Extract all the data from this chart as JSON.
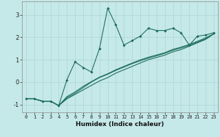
{
  "title": "",
  "xlabel": "Humidex (Indice chaleur)",
  "bg_color": "#c5e8e8",
  "line_color": "#1a6b5a",
  "grid_color": "#aad4d4",
  "xlim": [
    -0.5,
    23.5
  ],
  "ylim": [
    -1.35,
    3.6
  ],
  "xticks": [
    0,
    1,
    2,
    3,
    4,
    5,
    6,
    7,
    8,
    9,
    10,
    11,
    12,
    13,
    14,
    15,
    16,
    17,
    18,
    19,
    20,
    21,
    22,
    23
  ],
  "yticks": [
    -1,
    0,
    1,
    2,
    3
  ],
  "series1_x": [
    0,
    1,
    2,
    3,
    4,
    5,
    6,
    7,
    8,
    9,
    10,
    11,
    12,
    13,
    14,
    15,
    16,
    17,
    18,
    19,
    20,
    21,
    22,
    23
  ],
  "series1_y": [
    -0.75,
    -0.75,
    -0.85,
    -0.85,
    -1.05,
    0.1,
    0.9,
    0.65,
    0.45,
    1.5,
    3.3,
    2.55,
    1.65,
    1.85,
    2.05,
    2.4,
    2.3,
    2.3,
    2.4,
    2.2,
    1.65,
    2.05,
    2.1,
    2.2
  ],
  "series2_x": [
    0,
    1,
    2,
    3,
    4,
    5,
    6,
    7,
    8,
    9,
    10,
    11,
    12,
    13,
    14,
    15,
    16,
    17,
    18,
    19,
    20,
    21,
    22,
    23
  ],
  "series2_y": [
    -0.75,
    -0.75,
    -0.85,
    -0.85,
    -1.05,
    -0.75,
    -0.55,
    -0.35,
    -0.15,
    0.05,
    0.2,
    0.4,
    0.55,
    0.7,
    0.85,
    1.0,
    1.1,
    1.2,
    1.35,
    1.45,
    1.6,
    1.75,
    1.9,
    2.15
  ],
  "series3_x": [
    0,
    1,
    2,
    3,
    4,
    5,
    6,
    7,
    8,
    9,
    10,
    11,
    12,
    13,
    14,
    15,
    16,
    17,
    18,
    19,
    20,
    21,
    22,
    23
  ],
  "series3_y": [
    -0.75,
    -0.75,
    -0.85,
    -0.85,
    -1.05,
    -0.7,
    -0.5,
    -0.25,
    0.0,
    0.2,
    0.35,
    0.52,
    0.67,
    0.82,
    0.95,
    1.07,
    1.17,
    1.28,
    1.42,
    1.52,
    1.64,
    1.78,
    1.93,
    2.15
  ],
  "series4_x": [
    0,
    1,
    2,
    3,
    4,
    5,
    6,
    7,
    8,
    9,
    10,
    11,
    12,
    13,
    14,
    15,
    16,
    17,
    18,
    19,
    20,
    21,
    22,
    23
  ],
  "series4_y": [
    -0.75,
    -0.75,
    -0.85,
    -0.85,
    -1.05,
    -0.65,
    -0.44,
    -0.19,
    0.02,
    0.22,
    0.37,
    0.55,
    0.7,
    0.85,
    0.99,
    1.11,
    1.21,
    1.31,
    1.46,
    1.56,
    1.68,
    1.82,
    1.97,
    2.15
  ]
}
